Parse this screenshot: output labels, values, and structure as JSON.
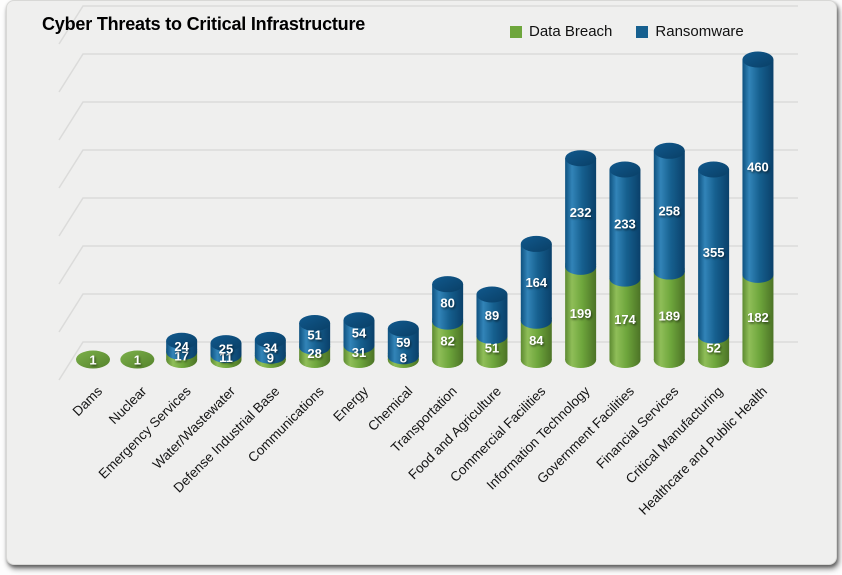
{
  "chart_data": {
    "type": "bar",
    "subtype": "3d-cylinder-stacked",
    "title": "Cyber Threats to Critical Infrastructure",
    "legend_position": "top-right",
    "value_labels": "white, inside segments",
    "gridlines": "horizontal with 3d left-wall bend, unlabeled",
    "gridline_step": 100,
    "ylim": [
      0,
      700
    ],
    "categories": [
      "Dams",
      "Nuclear",
      "Emergency Services",
      "Water/Wastewater",
      "Defense Industrial Base",
      "Communications",
      "Energy",
      "Chemical",
      "Transportation",
      "Food and Agriculture",
      "Commercial Facilities",
      "Information Technology",
      "Government Facilities",
      "Financial Services",
      "Critical Manufacturing",
      "Healthcare and Public Health"
    ],
    "series": [
      {
        "name": "Data Breach",
        "color": "#6ea63c",
        "stack_position": "bottom",
        "values": [
          1,
          1,
          17,
          11,
          9,
          28,
          31,
          8,
          82,
          51,
          84,
          199,
          174,
          189,
          52,
          182
        ]
      },
      {
        "name": "Ransomware",
        "color": "#16608f",
        "stack_position": "top",
        "values": [
          0,
          0,
          24,
          25,
          34,
          51,
          54,
          59,
          80,
          89,
          164,
          232,
          233,
          258,
          355,
          460
        ]
      }
    ]
  },
  "colors": {
    "card_background": "#efefee",
    "gridline": "#dbdbda",
    "green_body_light": "#8fbe58",
    "green_body_mid": "#6ea63c",
    "green_body_dark": "#4c7326",
    "blue_body_light": "#3284b8",
    "blue_body_mid": "#16608f",
    "blue_body_dark": "#0a406a",
    "blue_cap": "#0c4b77",
    "value_label_text": "#ffffff",
    "category_label_text": "#141414"
  }
}
